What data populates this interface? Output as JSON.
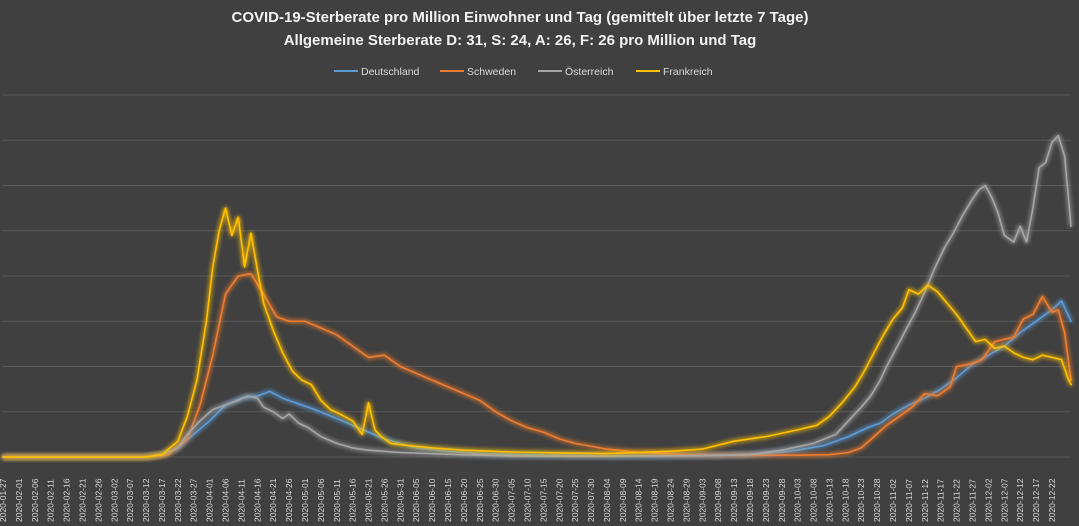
{
  "chart_data": {
    "type": "line",
    "title": "COVID-19-Sterberate pro Million Einwohner und Tag (gemittelt über letzte 7 Tage)",
    "subtitle": "Allgemeine Sterberate D: 31, S: 24, A: 26, F: 26 pro Million und Tag",
    "xlabel": "",
    "ylabel": "",
    "ylim": [
      0,
      16
    ],
    "y_gridlines": [
      0,
      2,
      4,
      6,
      8,
      10,
      12,
      14,
      16
    ],
    "legend": "top-center",
    "x_tick_labels": [
      "2020-01-27",
      "2020-02-01",
      "2020-02-06",
      "2020-02-11",
      "2020-02-16",
      "2020-02-21",
      "2020-02-26",
      "2020-03-02",
      "2020-03-07",
      "2020-03-12",
      "2020-03-17",
      "2020-03-22",
      "2020-03-27",
      "2020-04-01",
      "2020-04-06",
      "2020-04-11",
      "2020-04-16",
      "2020-04-21",
      "2020-04-26",
      "2020-05-01",
      "2020-05-06",
      "2020-05-11",
      "2020-05-16",
      "2020-05-21",
      "2020-05-26",
      "2020-05-31",
      "2020-06-05",
      "2020-06-10",
      "2020-06-15",
      "2020-06-20",
      "2020-06-25",
      "2020-06-30",
      "2020-07-05",
      "2020-07-10",
      "2020-07-15",
      "2020-07-20",
      "2020-07-25",
      "2020-07-30",
      "2020-08-04",
      "2020-08-09",
      "2020-08-14",
      "2020-08-19",
      "2020-08-24",
      "2020-08-29",
      "2020-09-03",
      "2020-09-08",
      "2020-09-13",
      "2020-09-18",
      "2020-09-23",
      "2020-09-28",
      "2020-10-03",
      "2020-10-08",
      "2020-10-13",
      "2020-10-18",
      "2020-10-23",
      "2020-10-28",
      "2020-11-02",
      "2020-11-07",
      "2020-11-12",
      "2020-11-17",
      "2020-11-22",
      "2020-11-27",
      "2020-12-02",
      "2020-12-07",
      "2020-12-12",
      "2020-12-17",
      "2020-12-22"
    ],
    "x_range_days": [
      0,
      336
    ],
    "series": [
      {
        "name": "Deutschland",
        "color": "#5b9bd5",
        "points": [
          [
            0,
            0
          ],
          [
            45,
            0
          ],
          [
            50,
            0.1
          ],
          [
            55,
            0.4
          ],
          [
            60,
            1.0
          ],
          [
            65,
            1.6
          ],
          [
            70,
            2.3
          ],
          [
            75,
            2.6
          ],
          [
            80,
            2.7
          ],
          [
            84,
            2.9
          ],
          [
            88,
            2.6
          ],
          [
            92,
            2.4
          ],
          [
            98,
            2.1
          ],
          [
            105,
            1.7
          ],
          [
            110,
            1.4
          ],
          [
            115,
            1.1
          ],
          [
            120,
            0.8
          ],
          [
            125,
            0.6
          ],
          [
            130,
            0.4
          ],
          [
            140,
            0.25
          ],
          [
            150,
            0.15
          ],
          [
            170,
            0.08
          ],
          [
            190,
            0.05
          ],
          [
            210,
            0.05
          ],
          [
            225,
            0.06
          ],
          [
            240,
            0.15
          ],
          [
            250,
            0.3
          ],
          [
            258,
            0.5
          ],
          [
            266,
            0.9
          ],
          [
            272,
            1.3
          ],
          [
            276,
            1.5
          ],
          [
            280,
            1.9
          ],
          [
            285,
            2.3
          ],
          [
            290,
            2.6
          ],
          [
            295,
            3.0
          ],
          [
            300,
            3.5
          ],
          [
            305,
            4.1
          ],
          [
            310,
            4.5
          ],
          [
            315,
            4.9
          ],
          [
            320,
            5.5
          ],
          [
            325,
            6.0
          ],
          [
            330,
            6.5
          ],
          [
            333,
            6.9
          ],
          [
            336,
            6.0
          ]
        ]
      },
      {
        "name": "Schweden",
        "color": "#ed7d31",
        "points": [
          [
            0,
            0
          ],
          [
            45,
            0
          ],
          [
            52,
            0.1
          ],
          [
            58,
            0.8
          ],
          [
            62,
            2.3
          ],
          [
            66,
            4.5
          ],
          [
            70,
            7.2
          ],
          [
            74,
            8.0
          ],
          [
            78,
            8.1
          ],
          [
            82,
            7.2
          ],
          [
            86,
            6.2
          ],
          [
            90,
            6.0
          ],
          [
            95,
            6.0
          ],
          [
            100,
            5.7
          ],
          [
            105,
            5.4
          ],
          [
            110,
            4.9
          ],
          [
            115,
            4.4
          ],
          [
            120,
            4.5
          ],
          [
            125,
            4.0
          ],
          [
            130,
            3.7
          ],
          [
            135,
            3.4
          ],
          [
            140,
            3.1
          ],
          [
            145,
            2.8
          ],
          [
            150,
            2.5
          ],
          [
            155,
            2.0
          ],
          [
            160,
            1.6
          ],
          [
            165,
            1.3
          ],
          [
            170,
            1.1
          ],
          [
            175,
            0.8
          ],
          [
            180,
            0.6
          ],
          [
            190,
            0.35
          ],
          [
            200,
            0.2
          ],
          [
            215,
            0.1
          ],
          [
            230,
            0.08
          ],
          [
            250,
            0.08
          ],
          [
            260,
            0.1
          ],
          [
            266,
            0.2
          ],
          [
            270,
            0.4
          ],
          [
            274,
            0.9
          ],
          [
            278,
            1.4
          ],
          [
            282,
            1.8
          ],
          [
            286,
            2.2
          ],
          [
            290,
            2.8
          ],
          [
            294,
            2.7
          ],
          [
            298,
            3.1
          ],
          [
            300,
            4.0
          ],
          [
            304,
            4.1
          ],
          [
            308,
            4.3
          ],
          [
            312,
            5.1
          ],
          [
            315,
            5.2
          ],
          [
            318,
            5.3
          ],
          [
            321,
            6.1
          ],
          [
            324,
            6.3
          ],
          [
            327,
            7.1
          ],
          [
            330,
            6.4
          ],
          [
            332,
            6.5
          ],
          [
            334,
            5.5
          ],
          [
            336,
            3.4
          ]
        ]
      },
      {
        "name": "Österreich",
        "color": "#a5a5a5",
        "points": [
          [
            0,
            0
          ],
          [
            45,
            0
          ],
          [
            50,
            0.1
          ],
          [
            55,
            0.4
          ],
          [
            58,
            1.0
          ],
          [
            62,
            1.6
          ],
          [
            66,
            2.1
          ],
          [
            70,
            2.3
          ],
          [
            74,
            2.5
          ],
          [
            77,
            2.7
          ],
          [
            80,
            2.6
          ],
          [
            82,
            2.2
          ],
          [
            85,
            2.0
          ],
          [
            88,
            1.7
          ],
          [
            90,
            1.9
          ],
          [
            93,
            1.5
          ],
          [
            96,
            1.3
          ],
          [
            100,
            0.9
          ],
          [
            105,
            0.6
          ],
          [
            110,
            0.4
          ],
          [
            115,
            0.3
          ],
          [
            125,
            0.2
          ],
          [
            140,
            0.12
          ],
          [
            160,
            0.05
          ],
          [
            180,
            0.03
          ],
          [
            200,
            0.04
          ],
          [
            220,
            0.06
          ],
          [
            235,
            0.1
          ],
          [
            245,
            0.3
          ],
          [
            255,
            0.6
          ],
          [
            262,
            1.0
          ],
          [
            266,
            1.6
          ],
          [
            270,
            2.2
          ],
          [
            273,
            2.7
          ],
          [
            276,
            3.4
          ],
          [
            278,
            4.0
          ],
          [
            281,
            4.8
          ],
          [
            284,
            5.6
          ],
          [
            287,
            6.4
          ],
          [
            290,
            7.3
          ],
          [
            293,
            8.3
          ],
          [
            296,
            9.2
          ],
          [
            299,
            9.9
          ],
          [
            302,
            10.7
          ],
          [
            305,
            11.4
          ],
          [
            307,
            11.8
          ],
          [
            309,
            12.0
          ],
          [
            311,
            11.5
          ],
          [
            313,
            10.8
          ],
          [
            315,
            9.8
          ],
          [
            318,
            9.5
          ],
          [
            320,
            10.2
          ],
          [
            322,
            9.5
          ],
          [
            324,
            11.0
          ],
          [
            326,
            12.8
          ],
          [
            328,
            13.0
          ],
          [
            330,
            13.9
          ],
          [
            332,
            14.2
          ],
          [
            334,
            13.3
          ],
          [
            336,
            10.2
          ]
        ]
      },
      {
        "name": "Frankreich",
        "color": "#ffc000",
        "points": [
          [
            0,
            0
          ],
          [
            45,
            0
          ],
          [
            50,
            0.1
          ],
          [
            55,
            0.7
          ],
          [
            58,
            1.8
          ],
          [
            61,
            3.4
          ],
          [
            64,
            6.0
          ],
          [
            66,
            8.4
          ],
          [
            68,
            10.0
          ],
          [
            70,
            11.0
          ],
          [
            72,
            9.8
          ],
          [
            74,
            10.6
          ],
          [
            76,
            8.4
          ],
          [
            78,
            9.9
          ],
          [
            80,
            8.3
          ],
          [
            82,
            6.8
          ],
          [
            85,
            5.6
          ],
          [
            88,
            4.6
          ],
          [
            91,
            3.8
          ],
          [
            94,
            3.4
          ],
          [
            97,
            3.2
          ],
          [
            100,
            2.5
          ],
          [
            103,
            2.1
          ],
          [
            106,
            1.9
          ],
          [
            110,
            1.6
          ],
          [
            113,
            1.0
          ],
          [
            115,
            2.4
          ],
          [
            117,
            1.2
          ],
          [
            119,
            0.9
          ],
          [
            122,
            0.6
          ],
          [
            128,
            0.5
          ],
          [
            135,
            0.4
          ],
          [
            145,
            0.3
          ],
          [
            160,
            0.22
          ],
          [
            175,
            0.18
          ],
          [
            190,
            0.15
          ],
          [
            200,
            0.2
          ],
          [
            210,
            0.25
          ],
          [
            220,
            0.35
          ],
          [
            230,
            0.7
          ],
          [
            240,
            0.9
          ],
          [
            250,
            1.2
          ],
          [
            256,
            1.4
          ],
          [
            260,
            1.8
          ],
          [
            264,
            2.4
          ],
          [
            268,
            3.1
          ],
          [
            271,
            3.8
          ],
          [
            274,
            4.6
          ],
          [
            277,
            5.4
          ],
          [
            280,
            6.1
          ],
          [
            283,
            6.6
          ],
          [
            285,
            7.4
          ],
          [
            288,
            7.2
          ],
          [
            291,
            7.6
          ],
          [
            294,
            7.3
          ],
          [
            297,
            6.8
          ],
          [
            300,
            6.3
          ],
          [
            303,
            5.7
          ],
          [
            306,
            5.1
          ],
          [
            309,
            5.2
          ],
          [
            312,
            4.8
          ],
          [
            315,
            4.9
          ],
          [
            318,
            4.6
          ],
          [
            321,
            4.4
          ],
          [
            324,
            4.3
          ],
          [
            327,
            4.5
          ],
          [
            330,
            4.4
          ],
          [
            333,
            4.3
          ],
          [
            335,
            3.5
          ],
          [
            336,
            3.2
          ]
        ]
      }
    ]
  }
}
